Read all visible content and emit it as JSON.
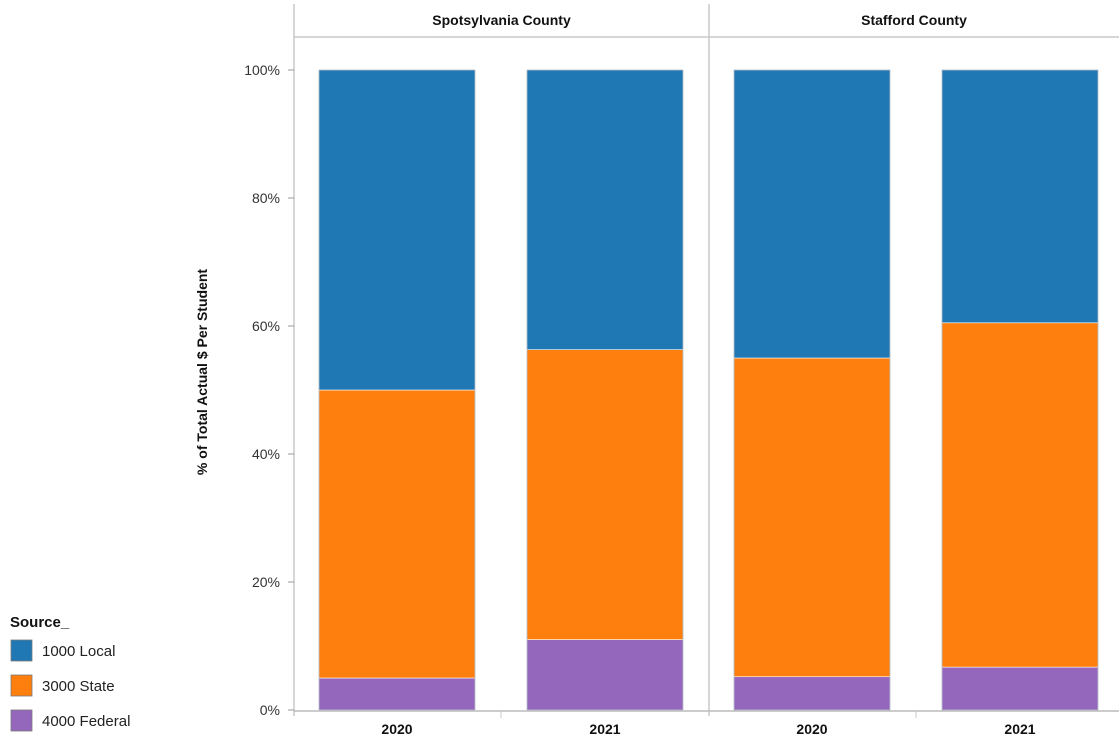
{
  "chart_data": {
    "type": "bar",
    "stacked": true,
    "normalized": true,
    "ylabel": "% of Total Actual $ Per Student",
    "ylim": [
      0,
      100
    ],
    "yticks": [
      "0%",
      "20%",
      "40%",
      "60%",
      "80%",
      "100%"
    ],
    "ytick_values": [
      0,
      20,
      40,
      60,
      80,
      100
    ],
    "grid": false,
    "legend": {
      "title": "Source_",
      "placement": "bottom-left",
      "entries": [
        {
          "name": "1000 Local",
          "color": "#1f77b4"
        },
        {
          "name": "3000 State",
          "color": "#ff7f0e"
        },
        {
          "name": "4000 Federal",
          "color": "#9467bd"
        }
      ]
    },
    "panels": [
      {
        "title": "Spotsylvania County",
        "categories": [
          "2020",
          "2021"
        ],
        "series": [
          {
            "name": "4000 Federal",
            "values": [
              5.0,
              11.0
            ]
          },
          {
            "name": "3000 State",
            "values": [
              45.0,
              45.3
            ]
          },
          {
            "name": "1000 Local",
            "values": [
              50.0,
              43.7
            ]
          }
        ]
      },
      {
        "title": "Stafford County",
        "categories": [
          "2020",
          "2021"
        ],
        "series": [
          {
            "name": "4000 Federal",
            "values": [
              5.2,
              6.7
            ]
          },
          {
            "name": "3000 State",
            "values": [
              49.8,
              53.8
            ]
          },
          {
            "name": "1000 Local",
            "values": [
              45.0,
              39.5
            ]
          }
        ]
      }
    ]
  }
}
